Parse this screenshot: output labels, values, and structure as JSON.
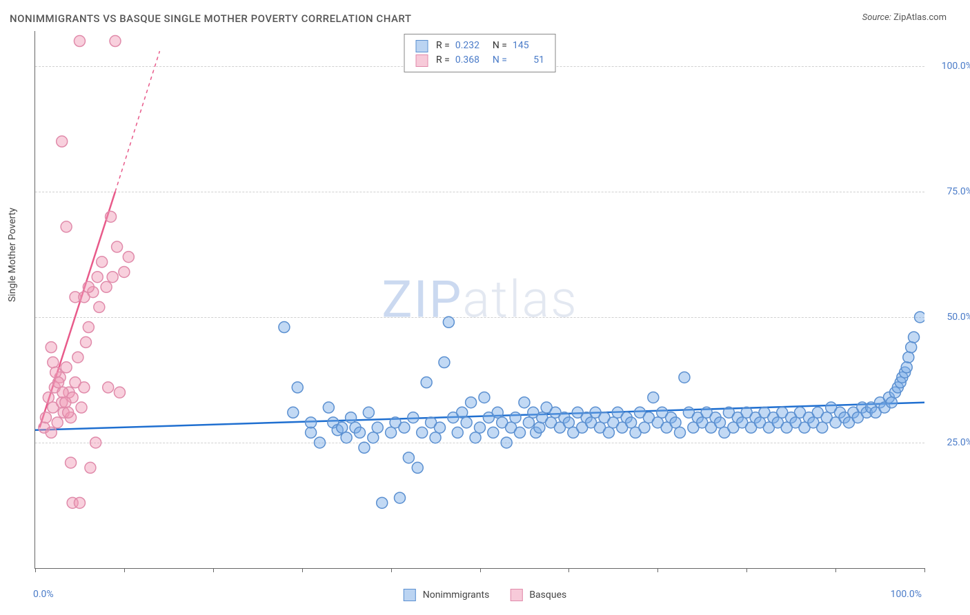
{
  "title": "NONIMMIGRANTS VS BASQUE SINGLE MOTHER POVERTY CORRELATION CHART",
  "source_label": "Source:",
  "source_name": "ZipAtlas.com",
  "y_axis_label": "Single Mother Poverty",
  "watermark_zip": "ZIP",
  "watermark_rest": "atlas",
  "chart": {
    "type": "scatter",
    "background_color": "#ffffff",
    "grid_color": "#d0d0d0",
    "axis_color": "#666666",
    "xlim": [
      0,
      100
    ],
    "ylim": [
      0,
      107
    ],
    "y_ticks": [
      25,
      50,
      75,
      100
    ],
    "y_tick_labels": [
      "25.0%",
      "50.0%",
      "75.0%",
      "100.0%"
    ],
    "x_tick_positions": [
      0,
      10,
      20,
      30,
      40,
      50,
      60,
      70,
      80,
      90,
      100
    ],
    "x_min_label": "0.0%",
    "x_max_label": "100.0%",
    "marker_radius": 8,
    "marker_stroke_width": 1.5,
    "series": [
      {
        "name": "Nonimmigrants",
        "fill": "rgba(120,170,230,0.45)",
        "stroke": "#5a8fd0",
        "r_value": "0.232",
        "n_value": "145",
        "trend": {
          "x1": 0,
          "y1": 27.5,
          "x2": 100,
          "y2": 33,
          "color": "#1f6fd0",
          "width": 2.5,
          "dashed": false
        },
        "points": [
          [
            28,
            48
          ],
          [
            29,
            31
          ],
          [
            29.5,
            36
          ],
          [
            31,
            27
          ],
          [
            31,
            29
          ],
          [
            32,
            25
          ],
          [
            33,
            32
          ],
          [
            33.5,
            29
          ],
          [
            34,
            27.5
          ],
          [
            34.5,
            28
          ],
          [
            35,
            26
          ],
          [
            35.5,
            30
          ],
          [
            36,
            28
          ],
          [
            36.5,
            27
          ],
          [
            37,
            24
          ],
          [
            37.5,
            31
          ],
          [
            38,
            26
          ],
          [
            38.5,
            28
          ],
          [
            39,
            13
          ],
          [
            40,
            27
          ],
          [
            40.5,
            29
          ],
          [
            41,
            14
          ],
          [
            41.5,
            28
          ],
          [
            42,
            22
          ],
          [
            42.5,
            30
          ],
          [
            43,
            20
          ],
          [
            43.5,
            27
          ],
          [
            44,
            37
          ],
          [
            44.5,
            29
          ],
          [
            45,
            26
          ],
          [
            45.5,
            28
          ],
          [
            46,
            41
          ],
          [
            46.5,
            49
          ],
          [
            47,
            30
          ],
          [
            47.5,
            27
          ],
          [
            48,
            31
          ],
          [
            48.5,
            29
          ],
          [
            49,
            33
          ],
          [
            49.5,
            26
          ],
          [
            50,
            28
          ],
          [
            50.5,
            34
          ],
          [
            51,
            30
          ],
          [
            51.5,
            27
          ],
          [
            52,
            31
          ],
          [
            52.5,
            29
          ],
          [
            53,
            25
          ],
          [
            53.5,
            28
          ],
          [
            54,
            30
          ],
          [
            54.5,
            27
          ],
          [
            55,
            33
          ],
          [
            55.5,
            29
          ],
          [
            56,
            31
          ],
          [
            56.3,
            27
          ],
          [
            56.7,
            28
          ],
          [
            57,
            30
          ],
          [
            57.5,
            32
          ],
          [
            58,
            29
          ],
          [
            58.5,
            31
          ],
          [
            59,
            28
          ],
          [
            59.5,
            30
          ],
          [
            60,
            29
          ],
          [
            60.5,
            27
          ],
          [
            61,
            31
          ],
          [
            61.5,
            28
          ],
          [
            62,
            30
          ],
          [
            62.5,
            29
          ],
          [
            63,
            31
          ],
          [
            63.5,
            28
          ],
          [
            64,
            30
          ],
          [
            64.5,
            27
          ],
          [
            65,
            29
          ],
          [
            65.5,
            31
          ],
          [
            66,
            28
          ],
          [
            66.5,
            30
          ],
          [
            67,
            29
          ],
          [
            67.5,
            27
          ],
          [
            68,
            31
          ],
          [
            68.5,
            28
          ],
          [
            69,
            30
          ],
          [
            69.5,
            34
          ],
          [
            70,
            29
          ],
          [
            70.5,
            31
          ],
          [
            71,
            28
          ],
          [
            71.5,
            30
          ],
          [
            72,
            29
          ],
          [
            72.5,
            27
          ],
          [
            73,
            38
          ],
          [
            73.5,
            31
          ],
          [
            74,
            28
          ],
          [
            74.5,
            30
          ],
          [
            75,
            29
          ],
          [
            75.5,
            31
          ],
          [
            76,
            28
          ],
          [
            76.5,
            30
          ],
          [
            77,
            29
          ],
          [
            77.5,
            27
          ],
          [
            78,
            31
          ],
          [
            78.5,
            28
          ],
          [
            79,
            30
          ],
          [
            79.5,
            29
          ],
          [
            80,
            31
          ],
          [
            80.5,
            28
          ],
          [
            81,
            30
          ],
          [
            81.5,
            29
          ],
          [
            82,
            31
          ],
          [
            82.5,
            28
          ],
          [
            83,
            30
          ],
          [
            83.5,
            29
          ],
          [
            84,
            31
          ],
          [
            84.5,
            28
          ],
          [
            85,
            30
          ],
          [
            85.5,
            29
          ],
          [
            86,
            31
          ],
          [
            86.5,
            28
          ],
          [
            87,
            30
          ],
          [
            87.5,
            29
          ],
          [
            88,
            31
          ],
          [
            88.5,
            28
          ],
          [
            89,
            30
          ],
          [
            89.5,
            32
          ],
          [
            90,
            29
          ],
          [
            90.5,
            31
          ],
          [
            91,
            30
          ],
          [
            91.5,
            29
          ],
          [
            92,
            31
          ],
          [
            92.5,
            30
          ],
          [
            93,
            32
          ],
          [
            93.5,
            31
          ],
          [
            94,
            32
          ],
          [
            94.5,
            31
          ],
          [
            95,
            33
          ],
          [
            95.5,
            32
          ],
          [
            96,
            34
          ],
          [
            96.3,
            33
          ],
          [
            96.7,
            35
          ],
          [
            97,
            36
          ],
          [
            97.3,
            37
          ],
          [
            97.5,
            38
          ],
          [
            97.8,
            39
          ],
          [
            98,
            40
          ],
          [
            98.2,
            42
          ],
          [
            98.5,
            44
          ],
          [
            98.8,
            46
          ],
          [
            99.5,
            50
          ]
        ]
      },
      {
        "name": "Basques",
        "fill": "rgba(240,150,180,0.45)",
        "stroke": "#e08aaa",
        "r_value": "0.368",
        "n_value": "51",
        "trend": {
          "x1": 0.5,
          "y1": 28,
          "x2": 9,
          "y2": 75,
          "color": "#e85a8a",
          "width": 2.5,
          "dashed_from": 75,
          "dashed_x2": 14,
          "dashed_y2": 103
        },
        "points": [
          [
            1,
            28
          ],
          [
            1.2,
            30
          ],
          [
            1.5,
            34
          ],
          [
            1.8,
            27
          ],
          [
            2,
            32
          ],
          [
            2.2,
            36
          ],
          [
            2.5,
            29
          ],
          [
            2.8,
            38
          ],
          [
            3,
            33
          ],
          [
            3.2,
            31
          ],
          [
            3.5,
            40
          ],
          [
            3.8,
            35
          ],
          [
            4,
            30
          ],
          [
            4.2,
            34
          ],
          [
            4.5,
            37
          ],
          [
            4.8,
            42
          ],
          [
            5,
            105
          ],
          [
            5.2,
            32
          ],
          [
            5.5,
            36
          ],
          [
            5.7,
            45
          ],
          [
            6,
            48
          ],
          [
            6.2,
            20
          ],
          [
            6.5,
            55
          ],
          [
            6.8,
            25
          ],
          [
            7,
            58
          ],
          [
            7.2,
            52
          ],
          [
            7.5,
            61
          ],
          [
            8,
            56
          ],
          [
            8.2,
            36
          ],
          [
            8.5,
            70
          ],
          [
            8.7,
            58
          ],
          [
            9,
            105
          ],
          [
            9.2,
            64
          ],
          [
            9.5,
            35
          ],
          [
            10,
            59
          ],
          [
            10.5,
            62
          ],
          [
            3,
            85
          ],
          [
            3.5,
            68
          ],
          [
            4,
            21
          ],
          [
            4.2,
            13
          ],
          [
            4.5,
            54
          ],
          [
            5,
            13
          ],
          [
            5.5,
            54
          ],
          [
            6,
            56
          ],
          [
            2,
            41
          ],
          [
            1.8,
            44
          ],
          [
            2.3,
            39
          ],
          [
            2.6,
            37
          ],
          [
            3.1,
            35
          ],
          [
            3.4,
            33
          ],
          [
            3.7,
            31
          ]
        ]
      }
    ]
  },
  "legend_bottom": [
    {
      "label": "Nonimmigrants",
      "swatch": "blue"
    },
    {
      "label": "Basques",
      "swatch": "pink"
    }
  ]
}
